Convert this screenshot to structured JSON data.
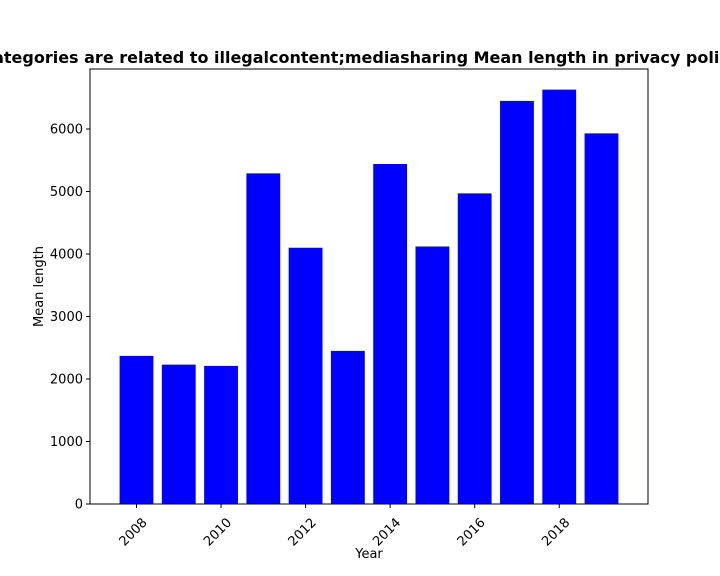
{
  "chart_data": {
    "type": "bar",
    "title": "Categories are related to illegalcontent;mediasharing Mean length in privacy policies",
    "xlabel": "Year",
    "ylabel": "Mean length",
    "x": [
      2008,
      2009,
      2010,
      2011,
      2012,
      2013,
      2014,
      2015,
      2016,
      2017,
      2018,
      2019
    ],
    "values": [
      2370,
      2230,
      2210,
      5290,
      4100,
      2450,
      5440,
      4120,
      4970,
      6450,
      6630,
      5930
    ],
    "xticks": [
      2008,
      2010,
      2012,
      2014,
      2016,
      2018
    ],
    "yticks": [
      0,
      1000,
      2000,
      3000,
      4000,
      5000,
      6000
    ],
    "xlim": [
      2006.9,
      2020.1
    ],
    "ylim": [
      0,
      6960
    ],
    "bar_color": "#0000ff",
    "grid": false,
    "xtick_rotation": 45
  }
}
